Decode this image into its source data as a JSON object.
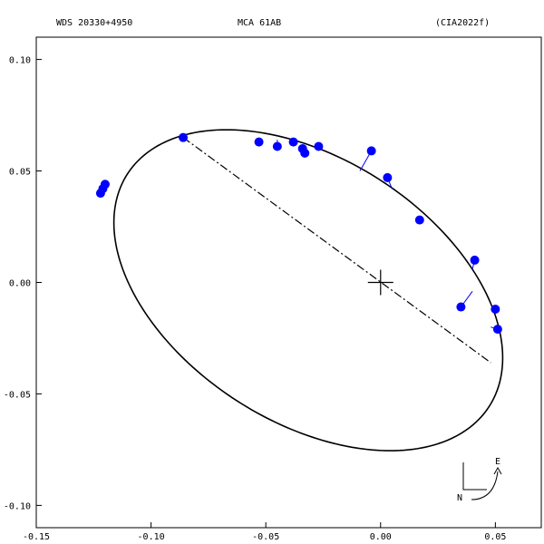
{
  "header": {
    "left": "WDS 20330+4950",
    "center": "MCA  61AB",
    "right": "(CIA2022f)"
  },
  "compass": {
    "east_label": "E",
    "north_label": "N"
  },
  "chart_data": {
    "type": "scatter",
    "title": "MCA  61AB",
    "xlim": [
      -0.15,
      0.07
    ],
    "ylim": [
      -0.11,
      0.11
    ],
    "x_ticks": [
      -0.15,
      -0.1,
      -0.05,
      0.0,
      0.05
    ],
    "x_tick_labels": [
      "-0.15",
      "-0.10",
      "-0.05",
      "0.00",
      "0.05"
    ],
    "y_ticks": [
      0.1,
      0.05,
      0.0,
      -0.05,
      -0.1
    ],
    "y_tick_labels": [
      "0.10",
      "0.05",
      "0.00",
      "-0.05",
      "-0.10"
    ],
    "grid": false,
    "primary": [
      0,
      0
    ],
    "orbit_ellipse": {
      "center": [
        -0.0315,
        -0.0035
      ],
      "semi_major": 0.0945,
      "semi_minor": 0.0585,
      "rotation_deg": -34.4
    },
    "line_of_apsides": {
      "from": [
        -0.086,
        0.065
      ],
      "to": [
        0.048,
        -0.036
      ]
    },
    "observations": [
      {
        "x": -0.086,
        "y": 0.065,
        "px": -0.086,
        "py": 0.065
      },
      {
        "x": -0.053,
        "y": 0.063,
        "px": -0.053,
        "py": 0.065
      },
      {
        "x": -0.045,
        "y": 0.061,
        "px": -0.045,
        "py": 0.064
      },
      {
        "x": -0.038,
        "y": 0.063,
        "px": -0.038,
        "py": 0.063
      },
      {
        "x": -0.034,
        "y": 0.06,
        "px": -0.034,
        "py": 0.062
      },
      {
        "x": -0.033,
        "y": 0.058,
        "px": -0.033,
        "py": 0.061
      },
      {
        "x": -0.027,
        "y": 0.061,
        "px": -0.027,
        "py": 0.06
      },
      {
        "x": -0.004,
        "y": 0.059,
        "px": -0.009,
        "py": 0.05
      },
      {
        "x": 0.003,
        "y": 0.047,
        "px": 0.005,
        "py": 0.042
      },
      {
        "x": 0.017,
        "y": 0.028,
        "px": 0.017,
        "py": 0.028
      },
      {
        "x": 0.041,
        "y": 0.01,
        "px": 0.04,
        "py": 0.006
      },
      {
        "x": 0.035,
        "y": -0.011,
        "px": 0.04,
        "py": -0.004
      },
      {
        "x": 0.05,
        "y": -0.012,
        "px": 0.048,
        "py": -0.012
      },
      {
        "x": 0.051,
        "y": -0.021,
        "px": 0.048,
        "py": -0.02
      },
      {
        "x": -0.12,
        "y": 0.044,
        "px": -0.121,
        "py": 0.043
      },
      {
        "x": -0.121,
        "y": 0.042,
        "px": -0.122,
        "py": 0.041
      },
      {
        "x": -0.122,
        "y": 0.04,
        "px": -0.122,
        "py": 0.04
      }
    ],
    "point_color": "#0000ff",
    "residual_color": "#0000ff",
    "curve_color": "#000000"
  }
}
